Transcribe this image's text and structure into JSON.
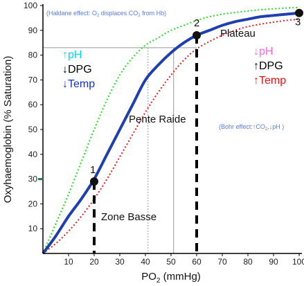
{
  "chart_data": {
    "type": "line",
    "xlabel_main": "PO",
    "xlabel_sub": "2",
    "xlabel_unit": " (mmHg)",
    "ylabel": "Oxyhaemoglobin (% Saturation)",
    "xlim": [
      0,
      100
    ],
    "ylim": [
      0,
      100
    ],
    "x_ticks": [
      10,
      20,
      30,
      40,
      50,
      60,
      70,
      80,
      90,
      100
    ],
    "y_ticks": [
      10,
      20,
      30,
      40,
      50,
      60,
      70,
      80,
      90,
      100
    ],
    "x": [
      0,
      5,
      10,
      15,
      20,
      25,
      30,
      35,
      40,
      45,
      50,
      55,
      60,
      65,
      70,
      75,
      80,
      85,
      90,
      95,
      100
    ],
    "series": [
      {
        "color": "#1f3fb0",
        "style": "solid",
        "values": [
          0,
          7,
          15,
          22,
          30,
          40,
          50,
          60,
          70,
          76,
          81,
          85,
          88,
          90,
          92,
          93.5,
          94.5,
          95.5,
          96,
          96.5,
          97
        ]
      },
      {
        "color": "#22dd22",
        "style": "dotted",
        "values": [
          0,
          12,
          24,
          37,
          50,
          62,
          72,
          79,
          84,
          87,
          90,
          92,
          94,
          95.5,
          96.5,
          97.2,
          97.8,
          98.3,
          98.7,
          99,
          99.2
        ]
      },
      {
        "color": "#e02020",
        "style": "dotted",
        "values": [
          0,
          4,
          9,
          15,
          22,
          30,
          39,
          48,
          57,
          65,
          72,
          78,
          82.5,
          85.5,
          88,
          90,
          91.5,
          92.5,
          93.3,
          94,
          94.5
        ]
      }
    ],
    "points": [
      {
        "label": "1",
        "x": 20,
        "y": 29
      },
      {
        "label": "2",
        "x": 60,
        "y": 88
      },
      {
        "label": "3",
        "x": 100,
        "y": 97
      }
    ],
    "ref_lines": [
      {
        "x": 51,
        "y": 83
      },
      {
        "x": 41,
        "y": 83
      }
    ],
    "marker_y": 30,
    "marker_color": "#1a7a5a",
    "annotations": {
      "haldane": "(Haldane effect: O",
      "haldane_sub": "2",
      "haldane_mid": " displaces CO",
      "haldane_sub2": "2",
      "haldane_end": " from Hb)",
      "bohr": "(Bohr effect:",
      "bohr_mid": "CO",
      "bohr_sub": "2",
      "bohr_sep": ",",
      "bohr_end": "pH )",
      "zone_basse": "Zone Basse",
      "pente_raide": "Pente Raide",
      "plateau": "Plateau"
    },
    "left_factors": [
      {
        "arrow": "↑",
        "text": "pH",
        "color": "#00d8e8"
      },
      {
        "arrow": "↓",
        "text": "DPG",
        "color": "#000000"
      },
      {
        "arrow": "↓",
        "text": "Temp",
        "color": "#1030e0"
      }
    ],
    "right_factors": [
      {
        "arrow": "↓",
        "text": "pH",
        "color": "#ff66dd"
      },
      {
        "arrow": "↑",
        "text": "DPG",
        "color": "#000000"
      },
      {
        "arrow": "↑",
        "text": "Temp",
        "color": "#ee1010"
      }
    ]
  }
}
